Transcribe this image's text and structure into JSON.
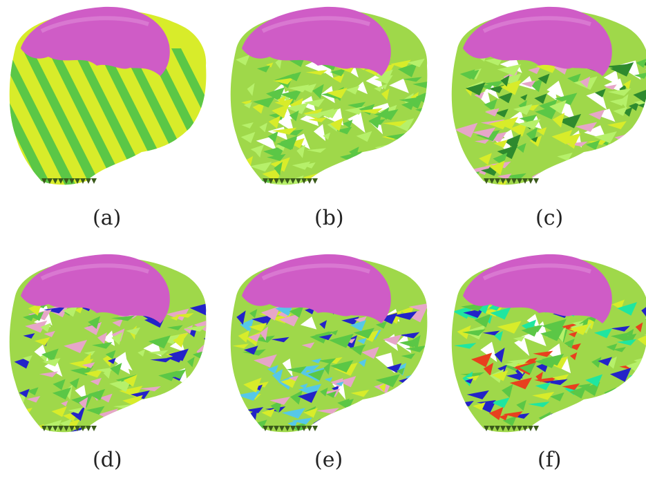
{
  "panels": [
    {
      "caption": "(a)",
      "palette": [
        "#d8ec2a",
        "#5bc746"
      ],
      "white_ratio": 0.0
    },
    {
      "caption": "(b)",
      "palette": [
        "#5bc746",
        "#d8ec2a",
        "#b6f06a"
      ],
      "white_ratio": 0.35
    },
    {
      "caption": "(c)",
      "palette": [
        "#5bc746",
        "#d8ec2a",
        "#b6f06a",
        "#e6a6c8",
        "#2e8a2e"
      ],
      "white_ratio": 0.3
    },
    {
      "caption": "(d)",
      "palette": [
        "#5bc746",
        "#2323c8",
        "#d8ec2a",
        "#b6f06a",
        "#e6a6c8"
      ],
      "white_ratio": 0.2
    },
    {
      "caption": "(e)",
      "palette": [
        "#5bc746",
        "#2323c8",
        "#d8ec2a",
        "#56c8e8",
        "#e6a6c8"
      ],
      "white_ratio": 0.12
    },
    {
      "caption": "(f)",
      "palette": [
        "#5bc746",
        "#2323c8",
        "#d8ec2a",
        "#e8401e",
        "#b6f06a",
        "#1fe6a0"
      ],
      "white_ratio": 0.12
    }
  ],
  "colors": {
    "cap_fill": "#cf5cc6",
    "body_base_light": "#d8ec2a",
    "body_base_mixed": "#9fd84a"
  }
}
